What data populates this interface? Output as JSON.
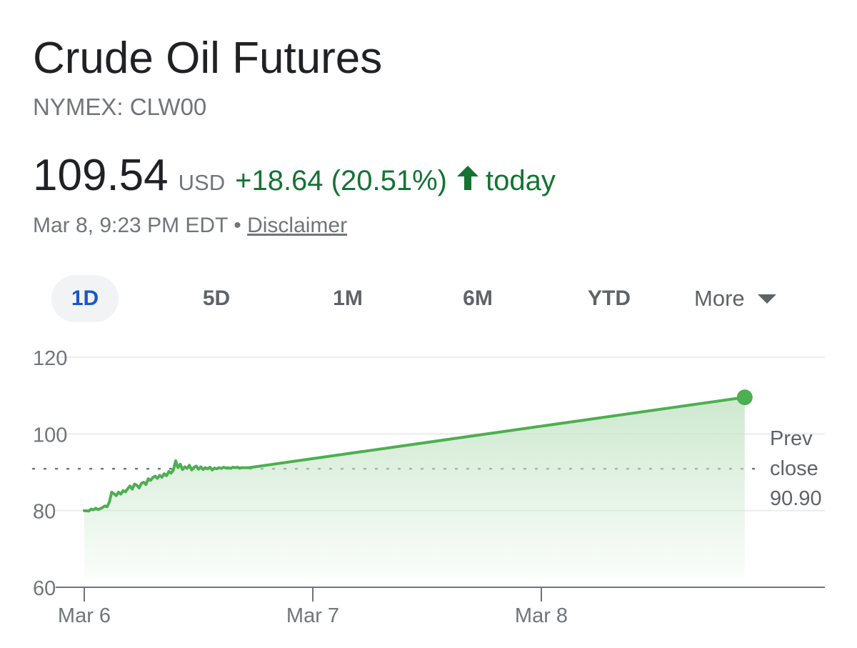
{
  "header": {
    "title": "Crude Oil Futures",
    "ticker": "NYMEX: CLW00"
  },
  "quote": {
    "price": "109.54",
    "currency": "USD",
    "change": "+18.64 (20.51%)",
    "direction_icon": "arrow-up-icon",
    "period": "today",
    "timestamp": "Mar 8, 9:23 PM EDT",
    "separator": "•",
    "disclaimer": "Disclaimer",
    "positive_color": "#137333"
  },
  "tabs": {
    "items": [
      "1D",
      "5D",
      "1M",
      "6M",
      "YTD"
    ],
    "active": "1D",
    "more_label": "More",
    "more_icon": "caret-down-icon"
  },
  "chart_data": {
    "type": "area",
    "line_color": "#4caf50",
    "fill_color": "#c8e6c9",
    "ylim": [
      60,
      120
    ],
    "yticks": [
      60,
      80,
      100,
      120
    ],
    "xticks": [
      "Mar 6",
      "Mar 7",
      "Mar 8"
    ],
    "xlim_days": [
      0,
      3.25
    ],
    "grid": true,
    "reference_line": {
      "value": 90.9,
      "label_lines": [
        "Prev",
        "close",
        "90.90"
      ],
      "style": "dotted"
    },
    "series": [
      {
        "x": [
          0.0,
          0.02,
          0.03,
          0.04,
          0.05,
          0.06,
          0.07,
          0.08,
          0.09,
          0.1,
          0.11,
          0.12,
          0.13,
          0.14,
          0.15,
          0.16,
          0.17,
          0.18,
          0.19,
          0.2,
          0.21,
          0.22,
          0.23,
          0.24,
          0.25,
          0.26,
          0.27,
          0.28,
          0.29,
          0.3,
          0.31,
          0.32,
          0.33,
          0.34,
          0.35,
          0.36,
          0.37,
          0.38,
          0.39,
          0.4,
          0.41,
          0.42,
          0.43,
          0.44,
          0.45,
          0.46,
          0.47,
          0.48,
          0.49,
          0.5,
          0.51,
          0.52,
          0.53,
          0.54,
          0.55,
          0.56,
          0.57,
          0.58,
          0.59,
          0.6,
          0.61,
          0.62,
          0.63,
          0.64,
          0.65,
          0.66,
          0.67,
          0.68,
          0.69,
          0.7,
          0.72,
          2.89
        ],
        "y": [
          80.0,
          79.9,
          80.4,
          80.2,
          80.6,
          80.3,
          80.5,
          80.8,
          81.2,
          81.0,
          82.3,
          84.8,
          84.4,
          83.9,
          84.8,
          84.3,
          85.2,
          84.9,
          85.7,
          86.4,
          85.6,
          86.9,
          86.6,
          85.9,
          87.1,
          87.4,
          86.8,
          88.3,
          87.9,
          88.6,
          89.0,
          88.4,
          89.2,
          88.7,
          89.6,
          89.1,
          90.2,
          89.8,
          90.6,
          93.0,
          91.2,
          92.1,
          90.7,
          91.4,
          91.0,
          91.8,
          90.6,
          91.3,
          91.6,
          90.8,
          91.4,
          90.7,
          91.2,
          90.9,
          91.3,
          90.6,
          91.1,
          90.9,
          91.2,
          91.0,
          91.3,
          91.1,
          91.2,
          91.0,
          91.3,
          91.2,
          91.3,
          91.1,
          91.2,
          91.2,
          91.2,
          109.54
        ]
      }
    ]
  }
}
